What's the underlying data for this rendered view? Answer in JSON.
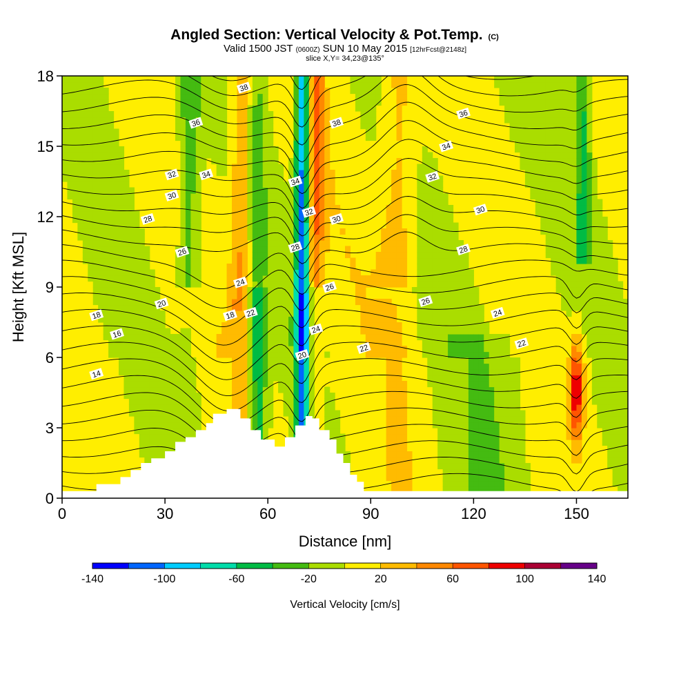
{
  "title": {
    "main": "Angled Section: Vertical Velocity & Pot.Temp.",
    "unit": "(C)",
    "valid_prefix": "Valid 1500 JST",
    "valid_utc": "(0600Z)",
    "valid_date": "SUN 10 May 2015",
    "valid_fcst": "[12hrFcst@2148z]",
    "slice": "slice X,Y= 34,23@135°"
  },
  "chart_data": {
    "type": "heatmap",
    "xlabel": "Distance [nm]",
    "ylabel": "Height [Kft MSL]",
    "xlim": [
      0,
      165
    ],
    "ylim": [
      0,
      18
    ],
    "xticks": [
      0,
      30,
      60,
      90,
      120,
      150
    ],
    "yticks": [
      0,
      3,
      6,
      9,
      12,
      15,
      18
    ],
    "colorbar": {
      "label": "Vertical Velocity [cm/s]",
      "ticks": [
        -140,
        -100,
        -60,
        -20,
        20,
        60,
        100,
        140
      ],
      "bins": [
        -140,
        -120,
        -100,
        -80,
        -60,
        -40,
        -20,
        0,
        20,
        40,
        60,
        80,
        100,
        120,
        140
      ],
      "colors": [
        "#0000ff",
        "#0066ff",
        "#00ccff",
        "#00ddaa",
        "#00bb44",
        "#44bb11",
        "#aadd00",
        "#ffee00",
        "#ffbb00",
        "#ff8800",
        "#ff5500",
        "#ee0000",
        "#aa0033",
        "#660088"
      ]
    },
    "terrain_kft": [
      [
        0,
        0.3
      ],
      [
        10,
        0.3
      ],
      [
        10,
        0.6
      ],
      [
        17,
        0.6
      ],
      [
        17,
        0.9
      ],
      [
        20,
        0.9
      ],
      [
        20,
        1.2
      ],
      [
        23,
        1.2
      ],
      [
        23,
        1.5
      ],
      [
        26,
        1.5
      ],
      [
        26,
        1.7
      ],
      [
        30,
        1.7
      ],
      [
        30,
        2.0
      ],
      [
        33,
        2.0
      ],
      [
        33,
        2.4
      ],
      [
        36,
        2.4
      ],
      [
        36,
        2.6
      ],
      [
        39,
        2.6
      ],
      [
        39,
        2.9
      ],
      [
        42,
        2.9
      ],
      [
        42,
        3.2
      ],
      [
        44,
        3.2
      ],
      [
        44,
        3.6
      ],
      [
        48,
        3.6
      ],
      [
        48,
        3.8
      ],
      [
        52,
        3.8
      ],
      [
        52,
        3.4
      ],
      [
        55,
        3.4
      ],
      [
        55,
        2.9
      ],
      [
        58,
        2.9
      ],
      [
        58,
        2.5
      ],
      [
        62,
        2.5
      ],
      [
        62,
        2.2
      ],
      [
        65,
        2.2
      ],
      [
        65,
        2.6
      ],
      [
        68,
        2.6
      ],
      [
        68,
        3.1
      ],
      [
        71,
        3.1
      ],
      [
        71,
        3.5
      ],
      [
        73,
        3.5
      ],
      [
        73,
        3.4
      ],
      [
        75,
        3.4
      ],
      [
        75,
        2.9
      ],
      [
        78,
        2.9
      ],
      [
        78,
        2.5
      ],
      [
        80,
        2.5
      ],
      [
        80,
        1.9
      ],
      [
        82,
        1.9
      ],
      [
        82,
        1.5
      ],
      [
        84,
        1.5
      ],
      [
        84,
        1.0
      ],
      [
        86,
        1.0
      ],
      [
        86,
        0.7
      ],
      [
        88,
        0.7
      ],
      [
        88,
        0.3
      ],
      [
        165,
        0.3
      ]
    ],
    "theta_labels": [
      {
        "x": 10,
        "y": 5.3,
        "v": "14"
      },
      {
        "x": 16,
        "y": 7.0,
        "v": "16"
      },
      {
        "x": 10,
        "y": 7.8,
        "v": "18"
      },
      {
        "x": 29,
        "y": 8.3,
        "v": "20"
      },
      {
        "x": 49,
        "y": 7.8,
        "v": "18"
      },
      {
        "x": 55,
        "y": 7.9,
        "v": "22"
      },
      {
        "x": 52,
        "y": 9.2,
        "v": "24"
      },
      {
        "x": 35,
        "y": 10.5,
        "v": "26"
      },
      {
        "x": 25,
        "y": 11.9,
        "v": "28"
      },
      {
        "x": 32,
        "y": 12.9,
        "v": "30"
      },
      {
        "x": 32,
        "y": 13.8,
        "v": "32"
      },
      {
        "x": 42,
        "y": 13.8,
        "v": "34"
      },
      {
        "x": 39,
        "y": 16.0,
        "v": "36"
      },
      {
        "x": 53,
        "y": 17.5,
        "v": "38"
      },
      {
        "x": 68,
        "y": 13.5,
        "v": "34"
      },
      {
        "x": 72,
        "y": 12.2,
        "v": "32"
      },
      {
        "x": 80,
        "y": 11.9,
        "v": "30"
      },
      {
        "x": 68,
        "y": 10.7,
        "v": "28"
      },
      {
        "x": 78,
        "y": 9.0,
        "v": "26"
      },
      {
        "x": 74,
        "y": 7.2,
        "v": "24"
      },
      {
        "x": 70,
        "y": 6.1,
        "v": "20"
      },
      {
        "x": 88,
        "y": 6.4,
        "v": "22"
      },
      {
        "x": 80,
        "y": 16.0,
        "v": "38"
      },
      {
        "x": 117,
        "y": 16.4,
        "v": "36"
      },
      {
        "x": 112,
        "y": 15.0,
        "v": "34"
      },
      {
        "x": 108,
        "y": 13.7,
        "v": "32"
      },
      {
        "x": 122,
        "y": 12.3,
        "v": "30"
      },
      {
        "x": 117,
        "y": 10.6,
        "v": "28"
      },
      {
        "x": 106,
        "y": 8.4,
        "v": "26"
      },
      {
        "x": 127,
        "y": 7.9,
        "v": "24"
      },
      {
        "x": 134,
        "y": 6.6,
        "v": "22"
      }
    ]
  }
}
